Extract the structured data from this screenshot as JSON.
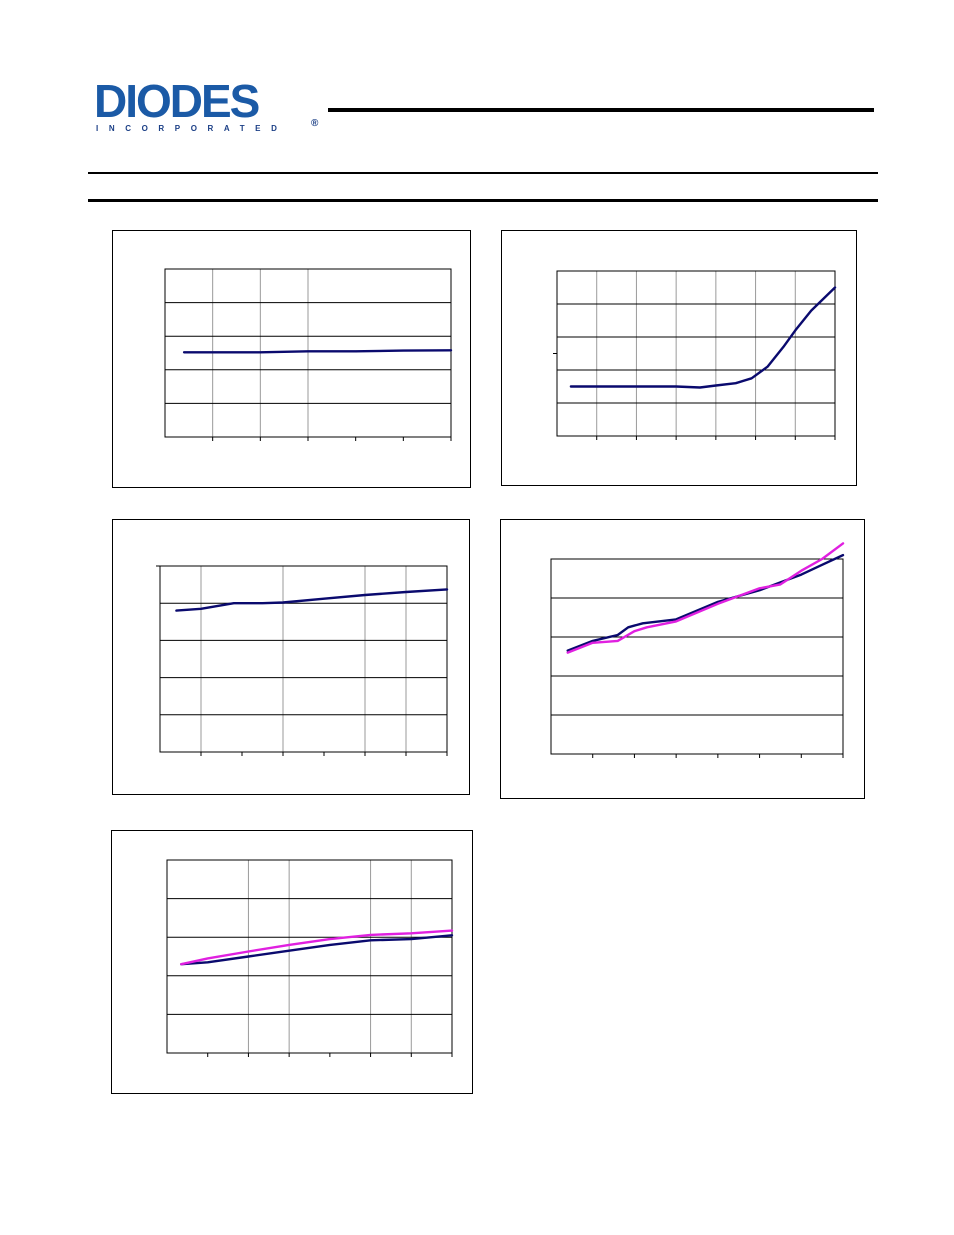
{
  "logo": {
    "word": "DIODES",
    "subtitle": "INCORPORATED",
    "registered": "®",
    "color_primary": "#1b5aa6",
    "color_secondary": "#1b3f86"
  },
  "colors": {
    "series_navy": "#0a0a6e",
    "series_magenta": "#e020e0"
  },
  "chart_data": [
    {
      "type": "line",
      "title": "",
      "xlabel": "",
      "ylabel": "",
      "xlim": [
        0,
        6
      ],
      "ylim": [
        0,
        5
      ],
      "grid": true,
      "series": [
        {
          "color": "#0a0a6e",
          "x": [
            0.4,
            1,
            2,
            3,
            4,
            5,
            6
          ],
          "y": [
            2.52,
            2.52,
            2.52,
            2.55,
            2.55,
            2.57,
            2.58
          ]
        }
      ]
    },
    {
      "type": "line",
      "title": "",
      "xlabel": "",
      "ylabel": "",
      "xlim": [
        0,
        7
      ],
      "ylim": [
        0,
        5
      ],
      "grid": true,
      "series": [
        {
          "color": "#0a0a6e",
          "x": [
            0.35,
            1,
            2,
            3,
            3.6,
            4,
            4.5,
            4.9,
            5.3,
            5.7,
            6,
            6.4,
            7
          ],
          "y": [
            1.5,
            1.5,
            1.5,
            1.5,
            1.47,
            1.53,
            1.6,
            1.75,
            2.1,
            2.7,
            3.2,
            3.8,
            4.5
          ]
        }
      ]
    },
    {
      "type": "line",
      "title": "",
      "xlabel": "",
      "ylabel": "",
      "xlim": [
        0,
        7
      ],
      "ylim": [
        0,
        5
      ],
      "grid": true,
      "series": [
        {
          "color": "#0a0a6e",
          "x": [
            0.4,
            1,
            1.8,
            2.5,
            3,
            4,
            5,
            6,
            7
          ],
          "y": [
            3.8,
            3.85,
            4.0,
            4.0,
            4.02,
            4.12,
            4.22,
            4.3,
            4.37
          ]
        }
      ]
    },
    {
      "type": "line",
      "title": "",
      "xlabel": "",
      "ylabel": "",
      "xlim": [
        0,
        7
      ],
      "ylim": [
        0,
        5
      ],
      "grid": true,
      "series": [
        {
          "color": "#0a0a6e",
          "x": [
            0.4,
            1,
            1.6,
            1.85,
            2.2,
            3,
            4,
            5,
            5.5,
            6,
            6.5,
            7
          ],
          "y": [
            2.65,
            2.9,
            3.05,
            3.25,
            3.35,
            3.45,
            3.9,
            4.2,
            4.4,
            4.6,
            4.85,
            5.1
          ]
        },
        {
          "color": "#e020e0",
          "x": [
            0.4,
            1,
            1.6,
            2.0,
            2.3,
            3,
            4,
            5,
            5.5,
            6,
            6.5,
            7
          ],
          "y": [
            2.6,
            2.85,
            2.9,
            3.15,
            3.25,
            3.4,
            3.85,
            4.25,
            4.35,
            4.7,
            5.0,
            5.4
          ]
        }
      ]
    },
    {
      "type": "line",
      "title": "",
      "xlabel": "",
      "ylabel": "",
      "xlim": [
        0,
        7
      ],
      "ylim": [
        0,
        5
      ],
      "grid": true,
      "series": [
        {
          "color": "#0a0a6e",
          "x": [
            0.35,
            1,
            2,
            3,
            4,
            5,
            6,
            7
          ],
          "y": [
            2.3,
            2.35,
            2.5,
            2.65,
            2.8,
            2.92,
            2.95,
            3.05
          ]
        },
        {
          "color": "#e020e0",
          "x": [
            0.35,
            1,
            2,
            3,
            4,
            5,
            6,
            7
          ],
          "y": [
            2.3,
            2.45,
            2.63,
            2.8,
            2.95,
            3.06,
            3.1,
            3.17
          ]
        }
      ]
    }
  ]
}
